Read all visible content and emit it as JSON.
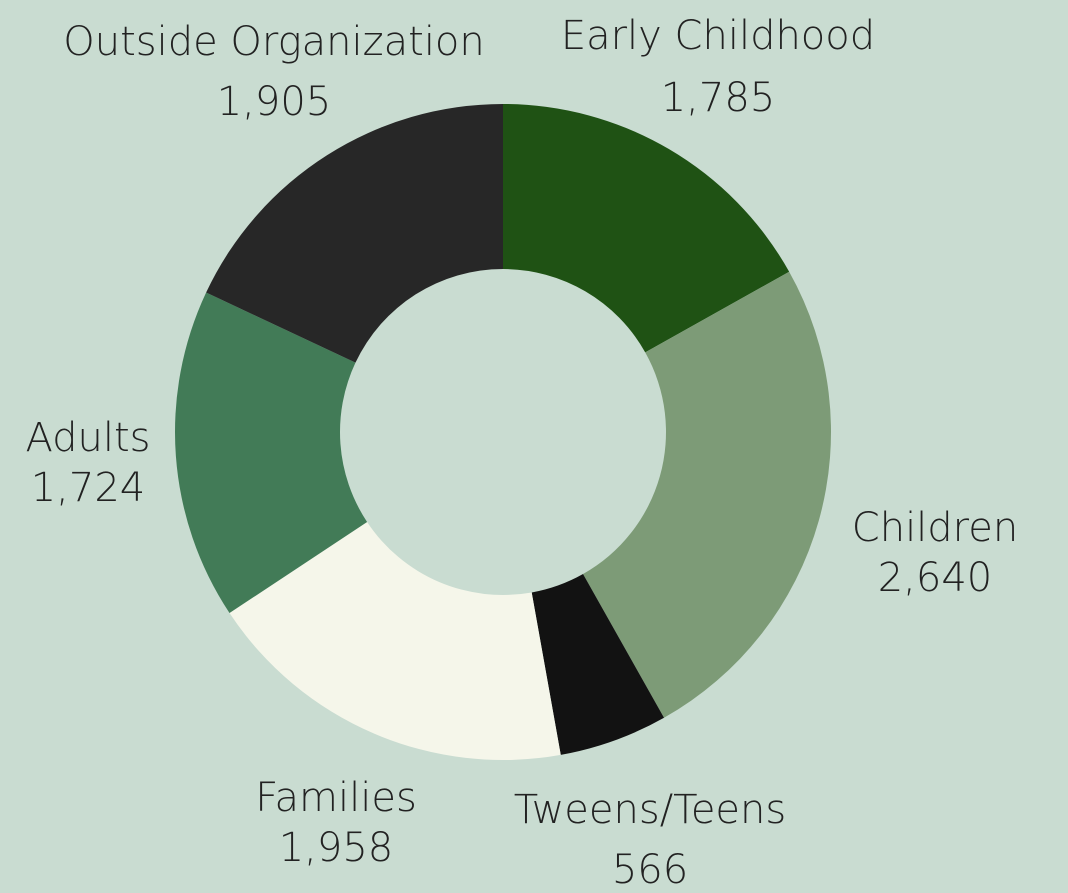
{
  "chart_data": {
    "type": "donut",
    "categories": [
      "Early Childhood",
      "Children",
      "Tweens/Teens",
      "Families",
      "Adults",
      "Outside Organization"
    ],
    "values": [
      1785,
      2640,
      566,
      1958,
      1724,
      1905
    ],
    "value_labels": [
      "1,785",
      "2,640",
      "566",
      "1,958",
      "1,724",
      "1,905"
    ],
    "colors": [
      "#1f5214",
      "#7d9b77",
      "#121212",
      "#f5f6ea",
      "#427b57",
      "#272727"
    ]
  }
}
